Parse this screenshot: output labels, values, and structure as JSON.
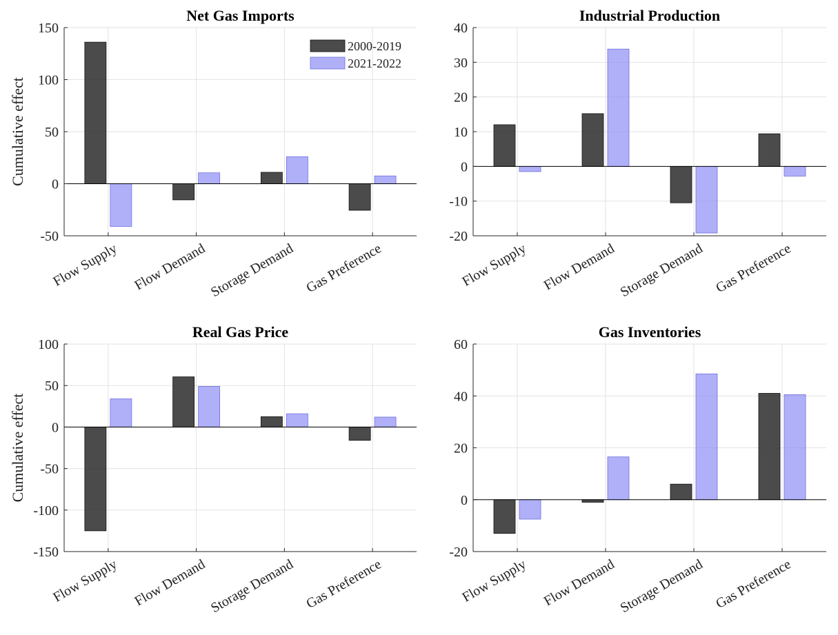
{
  "colors": {
    "series_a": "#2b2b2b",
    "series_b": "#8f8ff5",
    "grid": "#e2e2e2",
    "axis": "#262626"
  },
  "chart_data": [
    {
      "type": "bar",
      "title": "Net Gas Imports",
      "ylabel": "Cumulative effect",
      "ylim": [
        -50,
        150
      ],
      "yticks": [
        -50,
        0,
        50,
        100,
        150
      ],
      "categories": [
        "Flow Supply",
        "Flow Demand",
        "Storage Demand",
        "Gas Preference"
      ],
      "series": [
        {
          "name": "2000-2019",
          "values": [
            136,
            -15.5,
            11,
            -25.5
          ]
        },
        {
          "name": "2021-2022",
          "values": [
            -41,
            10.5,
            26,
            7.5
          ]
        }
      ],
      "legend": "top-right",
      "grid": true
    },
    {
      "type": "bar",
      "title": "Industrial Production",
      "ylabel": "",
      "ylim": [
        -20,
        40
      ],
      "yticks": [
        -20,
        -10,
        0,
        10,
        20,
        30,
        40
      ],
      "categories": [
        "Flow Supply",
        "Flow Demand",
        "Storage Demand",
        "Gas Preference"
      ],
      "series": [
        {
          "name": "2000-2019",
          "values": [
            12,
            15.2,
            -10.5,
            9.4
          ]
        },
        {
          "name": "2021-2022",
          "values": [
            -1.5,
            33.8,
            -19.2,
            -2.8
          ]
        }
      ],
      "grid": true
    },
    {
      "type": "bar",
      "title": "Real Gas Price",
      "ylabel": "Cumulative effect",
      "ylim": [
        -150,
        100
      ],
      "yticks": [
        -150,
        -100,
        -50,
        0,
        50,
        100
      ],
      "categories": [
        "Flow Supply",
        "Flow Demand",
        "Storage Demand",
        "Gas Preference"
      ],
      "series": [
        {
          "name": "2000-2019",
          "values": [
            -125,
            60.5,
            12.5,
            -16
          ]
        },
        {
          "name": "2021-2022",
          "values": [
            34,
            49,
            16,
            12
          ]
        }
      ],
      "grid": true
    },
    {
      "type": "bar",
      "title": "Gas Inventories",
      "ylabel": "",
      "ylim": [
        -20,
        60
      ],
      "yticks": [
        -20,
        0,
        20,
        40,
        60
      ],
      "categories": [
        "Flow Supply",
        "Flow Demand",
        "Storage Demand",
        "Gas Preference"
      ],
      "series": [
        {
          "name": "2000-2019",
          "values": [
            -13,
            -1,
            6,
            41
          ]
        },
        {
          "name": "2021-2022",
          "values": [
            -7.5,
            16.5,
            48.5,
            40.5
          ]
        }
      ],
      "grid": true
    }
  ]
}
